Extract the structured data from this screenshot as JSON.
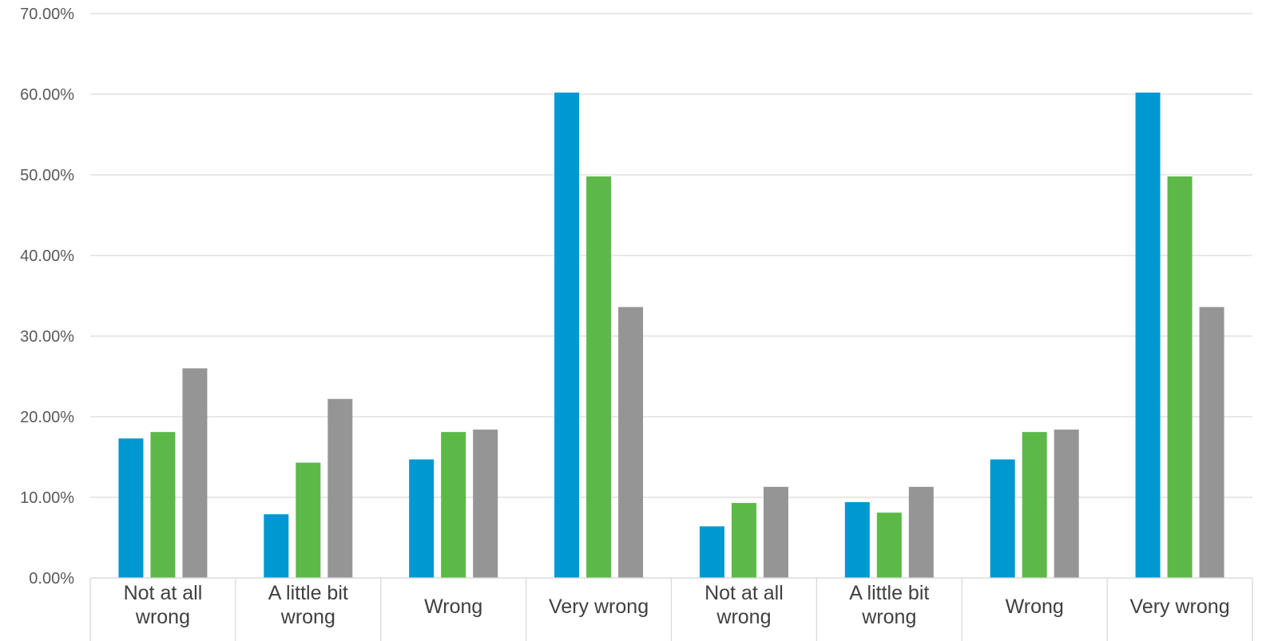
{
  "chart_data": {
    "type": "bar",
    "categories": [
      [
        "Not at all",
        "wrong"
      ],
      [
        "A little bit",
        "wrong"
      ],
      [
        "Wrong"
      ],
      [
        "Very wrong"
      ],
      [
        "Not at all",
        "wrong"
      ],
      [
        "A little bit",
        "wrong"
      ],
      [
        "Wrong"
      ],
      [
        "Very wrong"
      ]
    ],
    "series": [
      {
        "color": "#0098d0",
        "values": [
          17.3,
          7.9,
          14.7,
          60.2,
          6.4,
          9.4,
          14.7,
          60.2
        ]
      },
      {
        "color": "#5cb947",
        "values": [
          18.1,
          14.3,
          18.1,
          49.8,
          9.3,
          8.1,
          18.1,
          49.8
        ]
      },
      {
        "color": "#959595",
        "values": [
          26.0,
          22.2,
          18.4,
          33.6,
          11.3,
          11.3,
          18.4,
          33.6
        ]
      }
    ],
    "ylim": [
      0,
      70
    ],
    "yticks": [
      0,
      10,
      20,
      30,
      40,
      50,
      60,
      70
    ],
    "ytick_labels": [
      "0.00%",
      "10.00%",
      "20.00%",
      "30.00%",
      "40.00%",
      "50.00%",
      "60.00%",
      "70.00%"
    ],
    "grid": true,
    "legend": "none"
  }
}
